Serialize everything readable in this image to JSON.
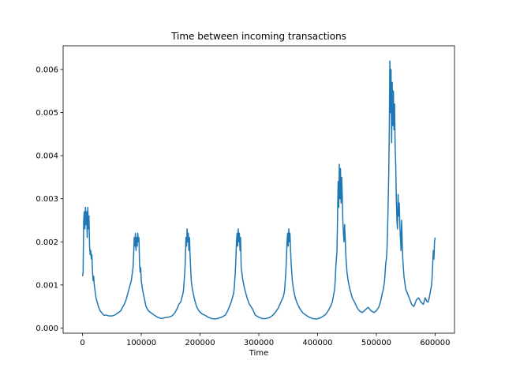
{
  "chart_data": {
    "type": "line",
    "title": "Time between incoming transactions",
    "xlabel": "Time",
    "ylabel": "",
    "xlim": [
      -33000,
      633000
    ],
    "ylim": [
      -0.00012,
      0.00655
    ],
    "xticks": [
      0,
      100000,
      200000,
      300000,
      400000,
      500000,
      600000
    ],
    "xtick_labels": [
      "0",
      "100000",
      "200000",
      "300000",
      "400000",
      "500000",
      "600000"
    ],
    "yticks": [
      0.0,
      0.001,
      0.002,
      0.003,
      0.004,
      0.005,
      0.006
    ],
    "ytick_labels": [
      "0.000",
      "0.001",
      "0.002",
      "0.003",
      "0.004",
      "0.005",
      "0.006"
    ],
    "grid": false,
    "legend": "none",
    "series": [
      {
        "color": "#1f77b4",
        "x": [
          0,
          1000,
          2000,
          3000,
          4000,
          5000,
          6000,
          7000,
          8000,
          9000,
          10000,
          11000,
          12000,
          13000,
          14000,
          15000,
          16000,
          17000,
          18000,
          19000,
          20000,
          21000,
          22000,
          23000,
          24000,
          25000,
          27000,
          30000,
          33000,
          36000,
          40000,
          45000,
          50000,
          55000,
          60000,
          65000,
          68000,
          71000,
          74000,
          77000,
          79000,
          81000,
          83000,
          84000,
          85000,
          86000,
          87000,
          88000,
          89000,
          90000,
          91000,
          92000,
          93000,
          94000,
          95000,
          96000,
          97000,
          98000,
          99000,
          100000,
          102000,
          105000,
          108000,
          112000,
          117000,
          122000,
          128000,
          134000,
          140000,
          146000,
          152000,
          157000,
          161000,
          164000,
          167000,
          169000,
          171000,
          172000,
          173000,
          174000,
          175000,
          176000,
          177000,
          178000,
          179000,
          180000,
          181000,
          182000,
          183000,
          184000,
          185000,
          187000,
          190000,
          194000,
          198000,
          203000,
          208000,
          214000,
          220000,
          226000,
          232000,
          238000,
          243000,
          247000,
          250000,
          253000,
          255000,
          257000,
          258000,
          259000,
          260000,
          261000,
          262000,
          263000,
          264000,
          265000,
          266000,
          267000,
          268000,
          269000,
          270000,
          271000,
          273000,
          276000,
          280000,
          284000,
          289000,
          294000,
          300000,
          306000,
          312000,
          318000,
          324000,
          329000,
          333000,
          336000,
          339000,
          341000,
          343000,
          344000,
          345000,
          346000,
          347000,
          348000,
          349000,
          350000,
          351000,
          352000,
          353000,
          354000,
          355000,
          356000,
          357000,
          359000,
          362000,
          366000,
          370000,
          375000,
          380000,
          386000,
          392000,
          398000,
          404000,
          409000,
          414000,
          418000,
          422000,
          425000,
          427000,
          429000,
          430000,
          431000,
          432000,
          433000,
          434000,
          435000,
          436000,
          437000,
          438000,
          439000,
          440000,
          441000,
          442000,
          443000,
          444000,
          445000,
          446000,
          447000,
          448000,
          449000,
          450000,
          452000,
          455000,
          459000,
          463000,
          467000,
          471000,
          476000,
          481000,
          486000,
          491000,
          496000,
          500000,
          504000,
          507000,
          510000,
          512000,
          514000,
          515000,
          516000,
          517000,
          518000,
          519000,
          520000,
          521000,
          522000,
          523000,
          524000,
          525000,
          526000,
          527000,
          528000,
          529000,
          530000,
          531000,
          532000,
          533000,
          534000,
          535000,
          536000,
          537000,
          538000,
          539000,
          540000,
          541000,
          542000,
          543000,
          544000,
          545000,
          547000,
          550000,
          553000,
          556000,
          560000,
          564000,
          568000,
          572000,
          576000,
          580000,
          583000,
          586000,
          588000,
          590000,
          592000,
          594000,
          595000,
          596000,
          597000,
          598000,
          599000,
          600000
        ],
        "y": [
          0.0012,
          0.0013,
          0.0025,
          0.0027,
          0.0023,
          0.0028,
          0.0024,
          0.0027,
          0.0021,
          0.0028,
          0.0023,
          0.0026,
          0.0019,
          0.0017,
          0.0018,
          0.0016,
          0.0017,
          0.0013,
          0.0011,
          0.0012,
          0.001,
          0.0009,
          0.0008,
          0.0007,
          0.00065,
          0.0006,
          0.0005,
          0.0004,
          0.00035,
          0.0003,
          0.0003,
          0.00028,
          0.00028,
          0.0003,
          0.00035,
          0.0004,
          0.00048,
          0.00055,
          0.00065,
          0.0008,
          0.0009,
          0.001,
          0.0011,
          0.0012,
          0.0013,
          0.0014,
          0.0017,
          0.0021,
          0.0019,
          0.0022,
          0.0018,
          0.0021,
          0.0019,
          0.0022,
          0.002,
          0.0021,
          0.0015,
          0.0013,
          0.0014,
          0.0011,
          0.0009,
          0.0007,
          0.0005,
          0.0004,
          0.00035,
          0.0003,
          0.00025,
          0.00022,
          0.00024,
          0.00025,
          0.00028,
          0.00035,
          0.00045,
          0.00055,
          0.0006,
          0.0007,
          0.0008,
          0.0009,
          0.0011,
          0.0013,
          0.0016,
          0.0021,
          0.0019,
          0.0023,
          0.002,
          0.0022,
          0.0018,
          0.0021,
          0.0017,
          0.0014,
          0.0011,
          0.0009,
          0.0007,
          0.0005,
          0.0004,
          0.00033,
          0.0003,
          0.00025,
          0.00022,
          0.00021,
          0.00023,
          0.00026,
          0.0003,
          0.0004,
          0.0005,
          0.0006,
          0.0007,
          0.0008,
          0.0009,
          0.0011,
          0.0013,
          0.0016,
          0.002,
          0.0022,
          0.0019,
          0.0023,
          0.002,
          0.0022,
          0.0018,
          0.0021,
          0.0014,
          0.0013,
          0.0011,
          0.0009,
          0.0007,
          0.00055,
          0.00045,
          0.0003,
          0.00025,
          0.00022,
          0.00022,
          0.00024,
          0.0003,
          0.00038,
          0.00046,
          0.00055,
          0.00065,
          0.0007,
          0.0008,
          0.0009,
          0.0011,
          0.0013,
          0.0016,
          0.002,
          0.0022,
          0.0019,
          0.0023,
          0.002,
          0.0022,
          0.0018,
          0.0015,
          0.0013,
          0.0011,
          0.0009,
          0.0007,
          0.00055,
          0.00045,
          0.00035,
          0.0003,
          0.00025,
          0.00022,
          0.00021,
          0.00023,
          0.00027,
          0.00032,
          0.0004,
          0.0005,
          0.0006,
          0.00075,
          0.0009,
          0.0011,
          0.0014,
          0.0016,
          0.0018,
          0.0026,
          0.0034,
          0.0028,
          0.0038,
          0.003,
          0.0037,
          0.0029,
          0.0035,
          0.0031,
          0.0025,
          0.0022,
          0.002,
          0.0024,
          0.0021,
          0.0017,
          0.0015,
          0.0013,
          0.0011,
          0.0009,
          0.0007,
          0.0006,
          0.00048,
          0.0004,
          0.00036,
          0.00042,
          0.00048,
          0.0004,
          0.00036,
          0.0004,
          0.00048,
          0.0006,
          0.0008,
          0.0009,
          0.0011,
          0.0013,
          0.0015,
          0.0016,
          0.0018,
          0.0022,
          0.0028,
          0.0035,
          0.0045,
          0.0062,
          0.005,
          0.006,
          0.0043,
          0.0057,
          0.0047,
          0.0055,
          0.0046,
          0.0052,
          0.0042,
          0.0038,
          0.003,
          0.0025,
          0.0023,
          0.0031,
          0.0026,
          0.0029,
          0.0024,
          0.0021,
          0.0018,
          0.0025,
          0.002,
          0.0016,
          0.0012,
          0.0009,
          0.0008,
          0.0007,
          0.00055,
          0.0005,
          0.00065,
          0.0007,
          0.0006,
          0.00055,
          0.0007,
          0.00062,
          0.0006,
          0.0007,
          0.00085,
          0.001,
          0.0012,
          0.0015,
          0.0018,
          0.0016,
          0.002,
          0.0021
        ]
      }
    ]
  }
}
